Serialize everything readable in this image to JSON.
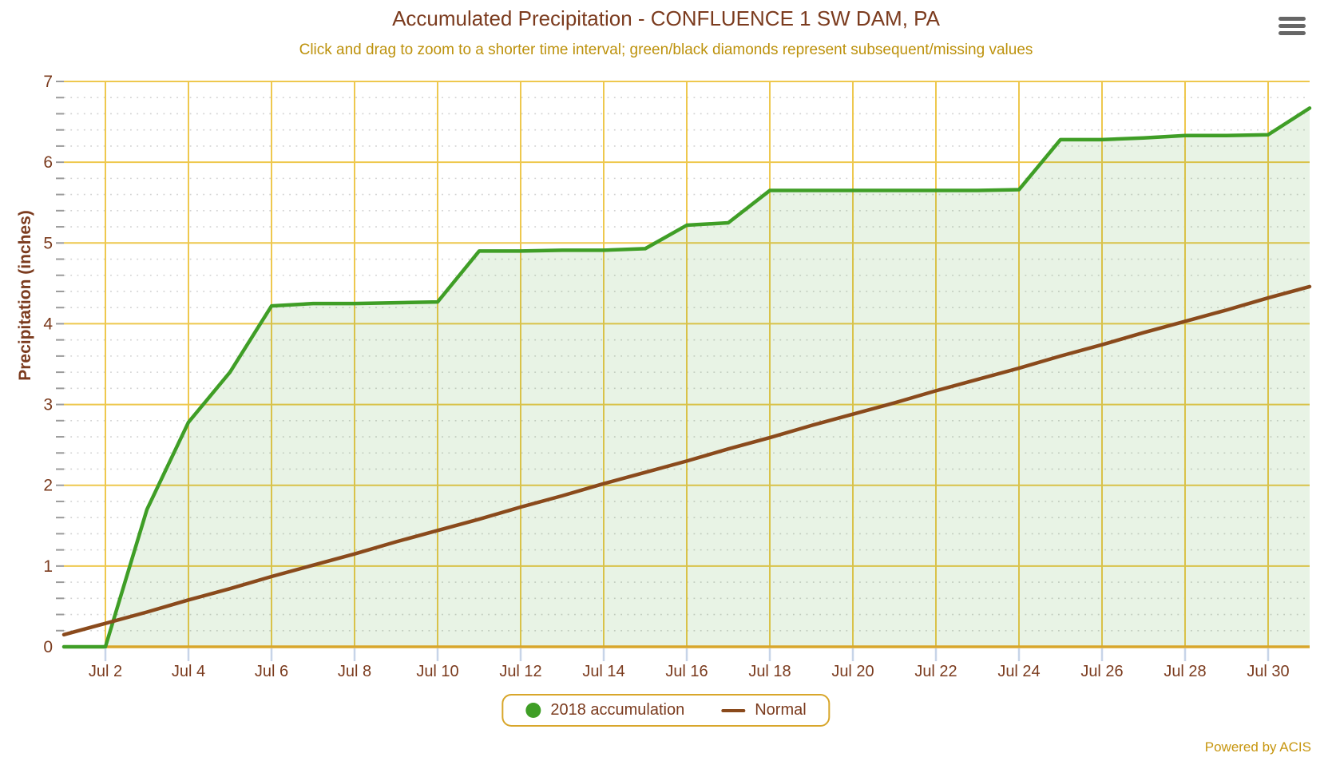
{
  "title": "Accumulated Precipitation - CONFLUENCE 1 SW DAM, PA",
  "subtitle": "Click and drag to zoom to a shorter time interval; green/black diamonds represent subsequent/missing values",
  "powered_by": "Powered by ACIS",
  "menu_icon": "hamburger-icon",
  "colors": {
    "title_text": "#7b3b1e",
    "subtitle_text": "#bd920d",
    "axis_label_text": "#7b3b1e",
    "grid_major": "#eec84e",
    "axis_line": "#d8a62b",
    "grid_minor": "#d2d2d2",
    "x_tick_mark": "#c7d4e8",
    "y_tick_mark": "#9b9b9b",
    "series_2018_line": "#3f9e26",
    "series_2018_fill": "rgba(63,158,38,0.12)",
    "series_normal_line": "#8a4a1c",
    "legend_border": "#d8a62b",
    "legend_text": "#7b3b1e",
    "menu_icon_color": "#666666",
    "powered_text": "#c7960f"
  },
  "chart_data": {
    "type": "line",
    "title": "Accumulated Precipitation - CONFLUENCE 1 SW DAM, PA",
    "subtitle": "Click and drag to zoom to a shorter time interval; green/black diamonds represent subsequent/missing values",
    "xlabel": "",
    "ylabel": "Precipitation (inches)",
    "ylim": [
      0,
      7
    ],
    "y_major_step": 1,
    "y_minor_step": 0.2,
    "grid": true,
    "legend_position": "bottom",
    "x": [
      "Jul 1",
      "Jul 2",
      "Jul 3",
      "Jul 4",
      "Jul 5",
      "Jul 6",
      "Jul 7",
      "Jul 8",
      "Jul 9",
      "Jul 10",
      "Jul 11",
      "Jul 12",
      "Jul 13",
      "Jul 14",
      "Jul 15",
      "Jul 16",
      "Jul 17",
      "Jul 18",
      "Jul 19",
      "Jul 20",
      "Jul 21",
      "Jul 22",
      "Jul 23",
      "Jul 24",
      "Jul 25",
      "Jul 26",
      "Jul 27",
      "Jul 28",
      "Jul 29",
      "Jul 30",
      "Jul 31"
    ],
    "x_tick_labels": [
      "Jul 2",
      "Jul 4",
      "Jul 6",
      "Jul 8",
      "Jul 10",
      "Jul 12",
      "Jul 14",
      "Jul 16",
      "Jul 18",
      "Jul 20",
      "Jul 22",
      "Jul 24",
      "Jul 26",
      "Jul 28",
      "Jul 30"
    ],
    "y_tick_labels": [
      "0",
      "1",
      "2",
      "3",
      "4",
      "5",
      "6",
      "7"
    ],
    "series": [
      {
        "name": "2018 accumulation",
        "marker": "circle",
        "fill": true,
        "values": [
          0.0,
          0.0,
          1.7,
          2.78,
          3.4,
          4.22,
          4.25,
          4.25,
          4.26,
          4.27,
          4.9,
          4.9,
          4.91,
          4.91,
          4.93,
          5.22,
          5.25,
          5.65,
          5.65,
          5.65,
          5.65,
          5.65,
          5.65,
          5.66,
          6.28,
          6.28,
          6.3,
          6.33,
          6.33,
          6.34,
          6.67
        ]
      },
      {
        "name": "Normal",
        "marker": "line",
        "fill": false,
        "values": [
          0.15,
          0.29,
          0.43,
          0.58,
          0.72,
          0.87,
          1.01,
          1.15,
          1.3,
          1.44,
          1.58,
          1.73,
          1.87,
          2.02,
          2.16,
          2.3,
          2.45,
          2.59,
          2.74,
          2.88,
          3.02,
          3.17,
          3.31,
          3.45,
          3.6,
          3.74,
          3.89,
          4.03,
          4.17,
          4.32,
          4.46
        ]
      }
    ]
  }
}
